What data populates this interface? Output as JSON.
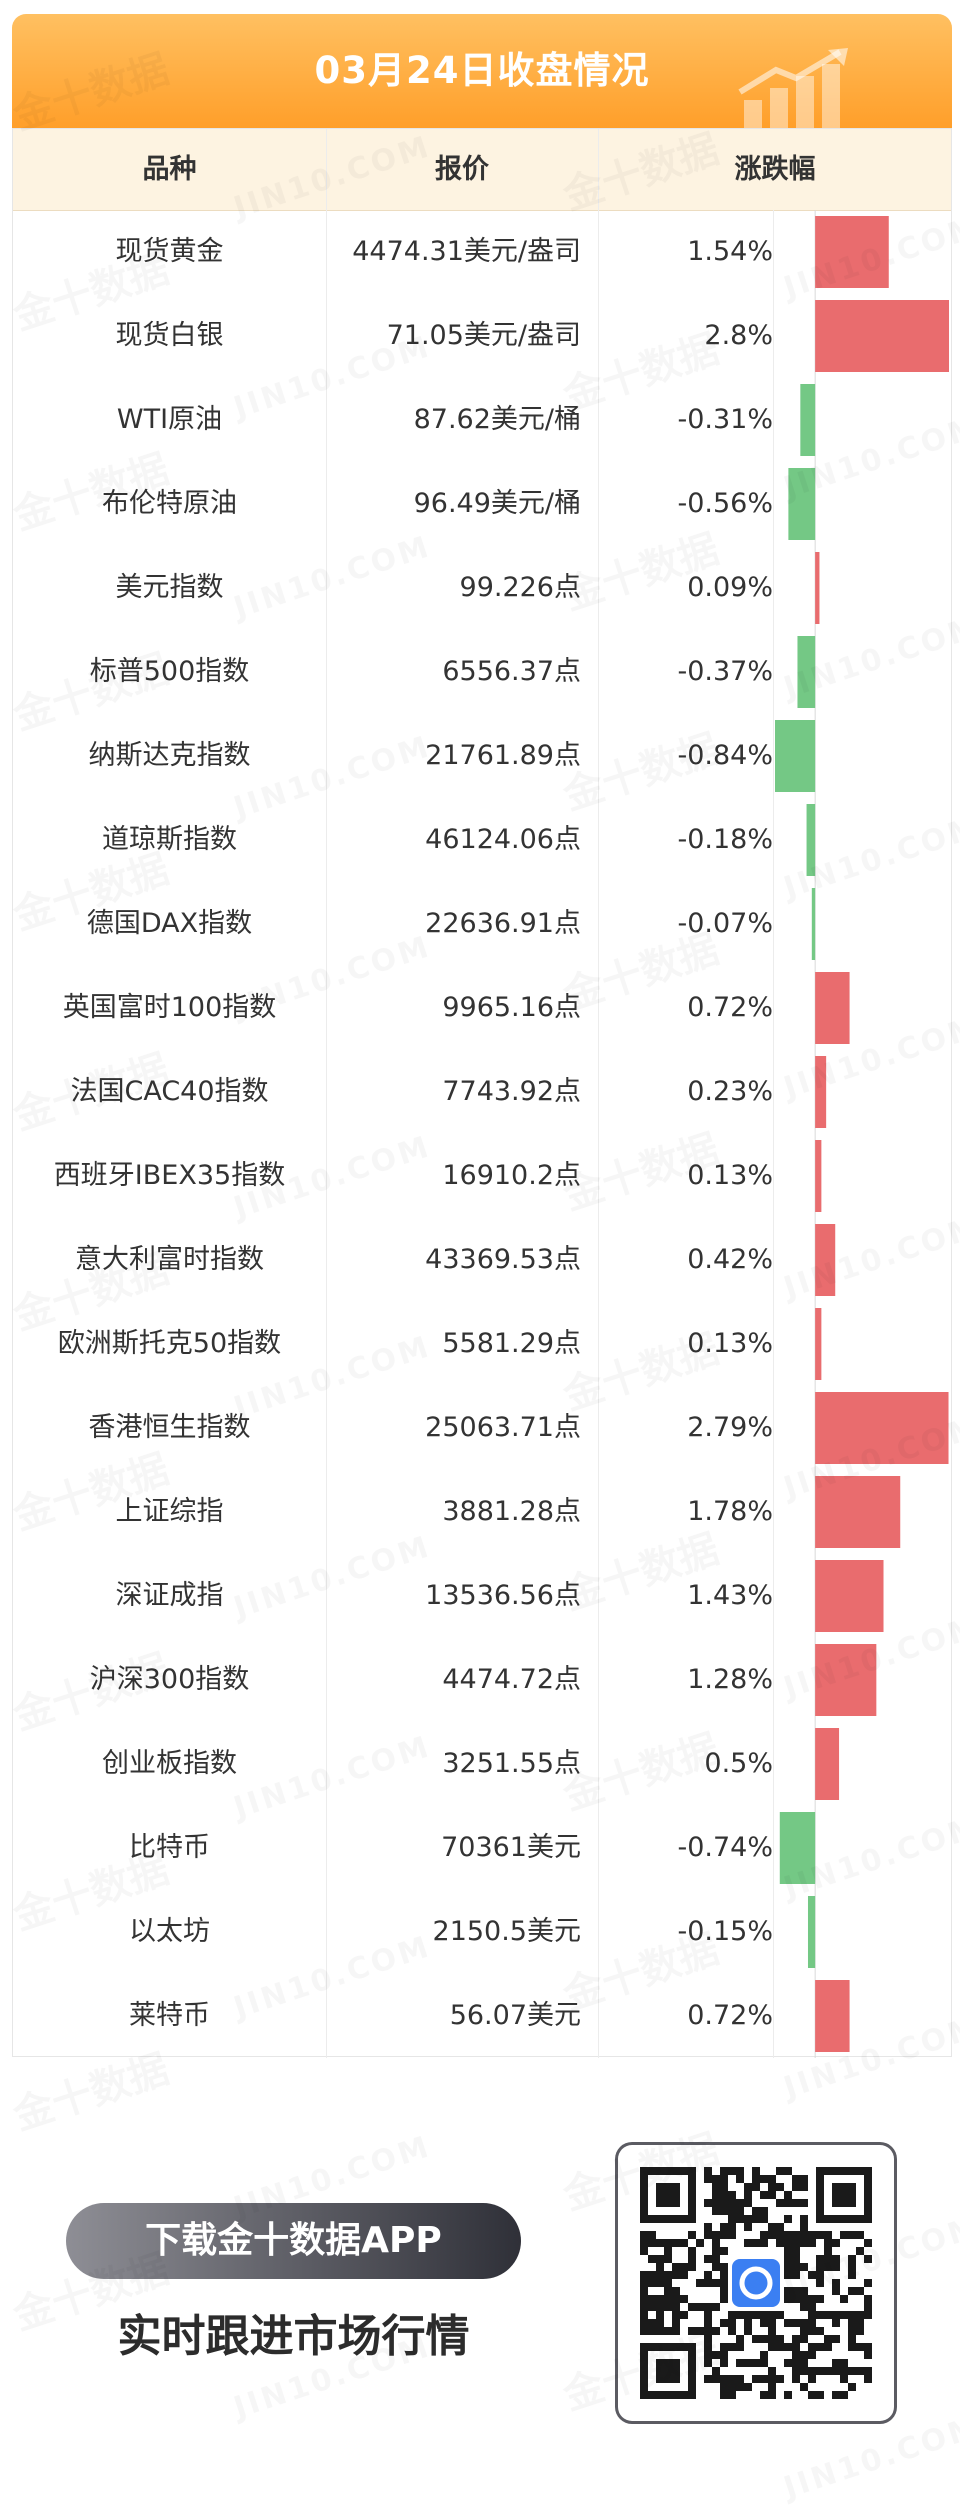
{
  "title": "03月24日收盘情况",
  "columns": {
    "name": "品种",
    "price": "报价",
    "change": "涨跌幅"
  },
  "colors": {
    "up": "#e96c6e",
    "down": "#74c885",
    "header_bg": "#fdf3e1",
    "banner": "#ffa533"
  },
  "chart_data": {
    "type": "bar",
    "categories": [
      "现货黄金",
      "现货白银",
      "WTI原油",
      "布伦特原油",
      "美元指数",
      "标普500指数",
      "纳斯达克指数",
      "道琼斯指数",
      "德国DAX指数",
      "英国富时100指数",
      "法国CAC40指数",
      "西班牙IBEX35指数",
      "意大利富时指数",
      "欧洲斯托克50指数",
      "香港恒生指数",
      "上证综指",
      "深证成指",
      "沪深300指数",
      "创业板指数",
      "比特币",
      "以太坊",
      "莱特币"
    ],
    "values": [
      1.54,
      2.8,
      -0.31,
      -0.56,
      0.09,
      -0.37,
      -0.84,
      -0.18,
      -0.07,
      0.72,
      0.23,
      0.13,
      0.42,
      0.13,
      2.79,
      1.78,
      1.43,
      1.28,
      0.5,
      -0.74,
      -0.15,
      0.72
    ],
    "xlim": [
      -0.84,
      2.8
    ]
  },
  "rows": [
    {
      "name": "现货黄金",
      "price": "4474.31美元/盎司",
      "change": "1.54%"
    },
    {
      "name": "现货白银",
      "price": "71.05美元/盎司",
      "change": "2.8%"
    },
    {
      "name": "WTI原油",
      "price": "87.62美元/桶",
      "change": "-0.31%"
    },
    {
      "name": "布伦特原油",
      "price": "96.49美元/桶",
      "change": "-0.56%"
    },
    {
      "name": "美元指数",
      "price": "99.226点",
      "change": "0.09%"
    },
    {
      "name": "标普500指数",
      "price": "6556.37点",
      "change": "-0.37%"
    },
    {
      "name": "纳斯达克指数",
      "price": "21761.89点",
      "change": "-0.84%"
    },
    {
      "name": "道琼斯指数",
      "price": "46124.06点",
      "change": "-0.18%"
    },
    {
      "name": "德国DAX指数",
      "price": "22636.91点",
      "change": "-0.07%"
    },
    {
      "name": "英国富时100指数",
      "price": "9965.16点",
      "change": "0.72%"
    },
    {
      "name": "法国CAC40指数",
      "price": "7743.92点",
      "change": "0.23%"
    },
    {
      "name": "西班牙IBEX35指数",
      "price": "16910.2点",
      "change": "0.13%"
    },
    {
      "name": "意大利富时指数",
      "price": "43369.53点",
      "change": "0.42%"
    },
    {
      "name": "欧洲斯托克50指数",
      "price": "5581.29点",
      "change": "0.13%"
    },
    {
      "name": "香港恒生指数",
      "price": "25063.71点",
      "change": "2.79%"
    },
    {
      "name": "上证综指",
      "price": "3881.28点",
      "change": "1.78%"
    },
    {
      "name": "深证成指",
      "price": "13536.56点",
      "change": "1.43%"
    },
    {
      "name": "沪深300指数",
      "price": "4474.72点",
      "change": "1.28%"
    },
    {
      "name": "创业板指数",
      "price": "3251.55点",
      "change": "0.5%"
    },
    {
      "name": "比特币",
      "price": "70361美元",
      "change": "-0.74%"
    },
    {
      "name": "以太坊",
      "price": "2150.5美元",
      "change": "-0.15%"
    },
    {
      "name": "莱特币",
      "price": "56.07美元",
      "change": "0.72%"
    }
  ],
  "footer": {
    "download_label": "下载金十数据APP",
    "slogan": "实时跟进市场行情"
  },
  "watermark": {
    "cn": "金十数据",
    "en": "JIN10.COM"
  },
  "icons": {
    "banner_deco": "bar-chart-arrow-icon",
    "qr": "qr-code-icon",
    "app_logo": "jin10-logo-icon"
  }
}
